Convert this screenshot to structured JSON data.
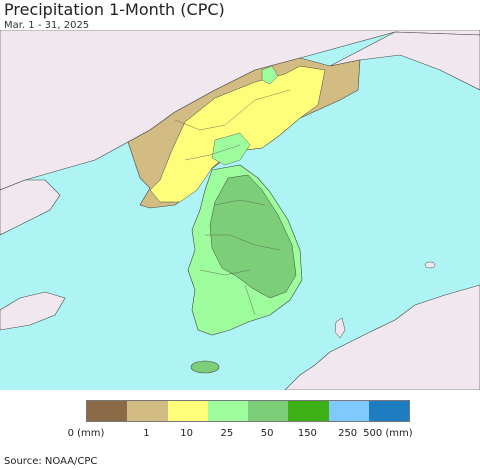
{
  "title": "Precipitation 1-Month (CPC)",
  "subtitle": "Mar. 1 - 31, 2025",
  "source": "Source: NOAA/CPC",
  "colors": {
    "water": "#aef4f4",
    "foreign_land": "#f0e8ee",
    "border": "#333333"
  },
  "legend": {
    "colors": [
      "#8b6b47",
      "#d2bc84",
      "#fefe7a",
      "#9efd9c",
      "#7dce78",
      "#3cb014",
      "#7fc9fd",
      "#1e7cc1"
    ],
    "labels": [
      "0 (mm)",
      "1",
      "10",
      "25",
      "50",
      "150",
      "250",
      "500 (mm)"
    ]
  }
}
